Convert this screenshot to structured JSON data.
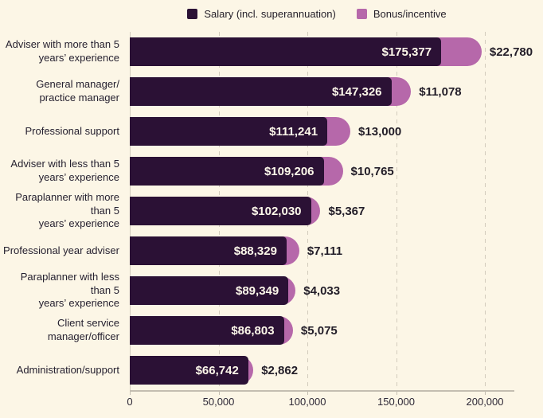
{
  "colors": {
    "background": "#fcf6e6",
    "salary": "#2b1135",
    "bonus": "#b668aa",
    "grid": "#d3ccbd",
    "axis": "#c4beb1",
    "category_text": "#262130",
    "salary_value_text": "#fdf8ea",
    "bonus_value_text": "#221d28"
  },
  "legend": {
    "items": [
      {
        "label": "Salary (incl. superannuation)",
        "color": "#2b1135"
      },
      {
        "label": "Bonus/incentive",
        "color": "#b668aa"
      }
    ]
  },
  "chart_data": {
    "type": "bar",
    "orientation": "horizontal",
    "stacked": true,
    "title": "",
    "xlabel": "",
    "ylabel": "",
    "xlim": [
      0,
      200000
    ],
    "x_ticks": [
      0,
      50000,
      100000,
      150000,
      200000
    ],
    "x_tick_labels": [
      "0",
      "50,000",
      "100,000",
      "150,000",
      "200,000"
    ],
    "grid": "dashed-vertical",
    "legend_position": "top",
    "categories": [
      "Adviser with more than 5\nyears’ experience",
      "General manager/\npractice manager",
      "Professional support",
      "Adviser with less than 5\nyears’ experience",
      "Paraplanner with more than 5\nyears’ experience",
      "Professional year adviser",
      "Paraplanner with less than 5\nyears’ experience",
      "Client service manager/officer",
      "Administration/support"
    ],
    "series": [
      {
        "name": "Salary (incl. superannuation)",
        "values": [
          175377,
          147326,
          111241,
          109206,
          102030,
          88329,
          89349,
          86803,
          66742
        ]
      },
      {
        "name": "Bonus/incentive",
        "values": [
          22780,
          11078,
          13000,
          10765,
          5367,
          7111,
          4033,
          5075,
          2862
        ]
      }
    ],
    "bar_labels": {
      "salary": [
        "$175,377",
        "$147,326",
        "$111,241",
        "$109,206",
        "$102,030",
        "$88,329",
        "$89,349",
        "$86,803",
        "$66,742"
      ],
      "bonus": [
        "$22,780",
        "$11,078",
        "$13,000",
        "$10,765",
        "$5,367",
        "$7,111",
        "$4,033",
        "$5,075",
        "$2,862"
      ]
    }
  }
}
